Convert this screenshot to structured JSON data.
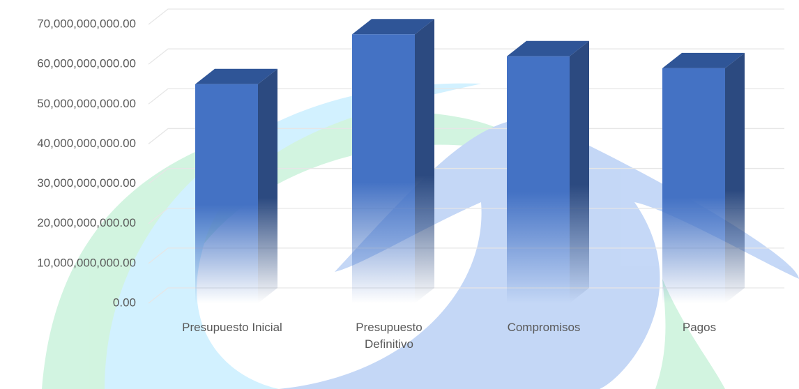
{
  "chart_data": {
    "type": "bar3d",
    "categories": [
      "Presupuesto Inicial",
      "Presupuesto Definitivo",
      "Compromisos",
      "Pagos"
    ],
    "values": [
      55000000000,
      67500000000,
      62000000000,
      59000000000
    ],
    "color": "#4472c4",
    "ylim": [
      0,
      70000000000
    ],
    "yticks": [
      {
        "value": 0,
        "label": "0.00"
      },
      {
        "value": 10000000000,
        "label": "10,000,000,000.00"
      },
      {
        "value": 20000000000,
        "label": "20,000,000,000.00"
      },
      {
        "value": 30000000000,
        "label": "30,000,000,000.00"
      },
      {
        "value": 40000000000,
        "label": "40,000,000,000.00"
      },
      {
        "value": 50000000000,
        "label": "50,000,000,000.00"
      },
      {
        "value": 60000000000,
        "label": "60,000,000,000.00"
      },
      {
        "value": 70000000000,
        "label": "70,000,000,000.00"
      }
    ],
    "grid": true
  }
}
